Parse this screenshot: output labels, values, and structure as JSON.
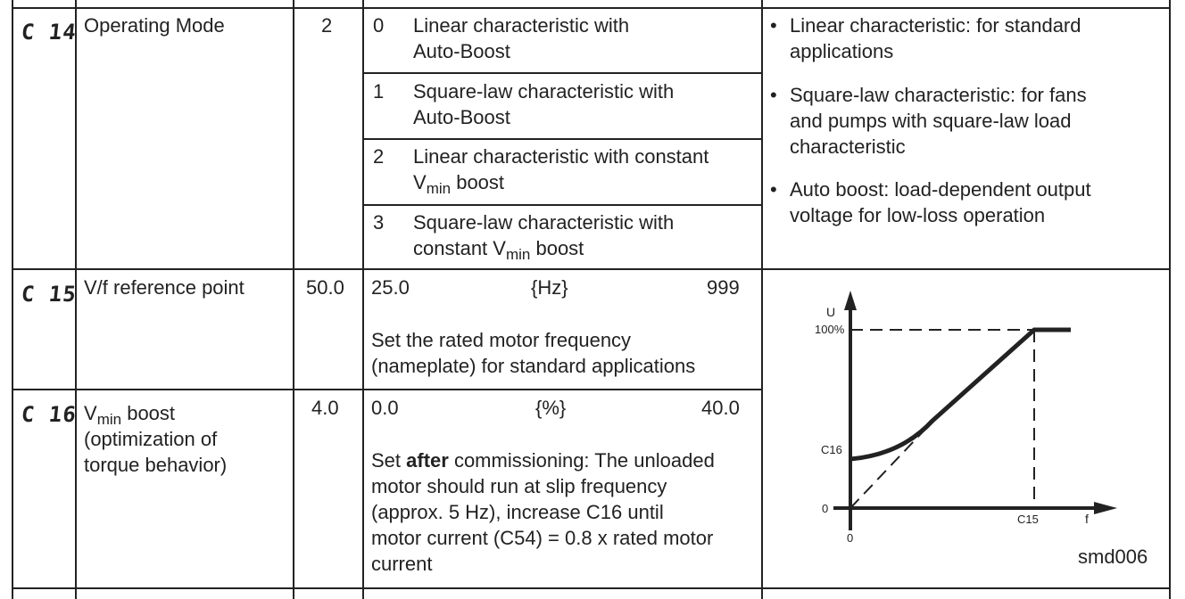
{
  "rows": [
    {
      "code": "C 14",
      "name": "Operating Mode",
      "default": "2",
      "options": [
        {
          "num": "0",
          "line1": "Linear characteristic with",
          "line2": "Auto-Boost"
        },
        {
          "num": "1",
          "line1": "Square-law characteristic with",
          "line2": "Auto-Boost"
        },
        {
          "num": "2",
          "line1": "Linear characteristic with constant",
          "line2_pre": "V",
          "line2_sub": "min",
          "line2_post": " boost"
        },
        {
          "num": "3",
          "line1": "Square-law characteristic with",
          "line2_pre": "constant V",
          "line2_sub": "min",
          "line2_post": " boost"
        }
      ],
      "notes": [
        {
          "bullet": "•",
          "text": "Linear characteristic: for standard\napplications"
        },
        {
          "bullet": "•",
          "text": "Square-law characteristic: for fans\nand pumps with square-law load\ncharacteristic"
        },
        {
          "bullet": "•",
          "text": "Auto boost: load-dependent output\nvoltage for low-loss operation"
        }
      ]
    },
    {
      "code": "C 15",
      "name": "V/f reference point",
      "default": "50.0",
      "min": "25.0",
      "unit": "{Hz}",
      "max": "999",
      "description": "Set the rated motor frequency\n(nameplate) for standard applications"
    },
    {
      "code": "C 16",
      "name_pre": "V",
      "name_sub": "min",
      "name_post": " boost\n(optimization of\ntorque behavior)",
      "default": "4.0",
      "min": "0.0",
      "unit": "{%}",
      "max": "40.0",
      "description_pre": "Set ",
      "description_bold": "after",
      "description_post": " commissioning: The unloaded\nmotor should run at slip frequency\n(approx. 5 Hz), increase C16 until\nmotor current (C54) = 0.8 x rated motor\ncurrent"
    }
  ],
  "diagram": {
    "y_axis_label": "U",
    "x_axis_label": "f",
    "y_tick_top": "100%",
    "y_tick_boost": "C16",
    "y_tick_zero": "0",
    "x_tick_zero": "0",
    "x_tick_ref": "C15",
    "figure_id": "smd006"
  }
}
